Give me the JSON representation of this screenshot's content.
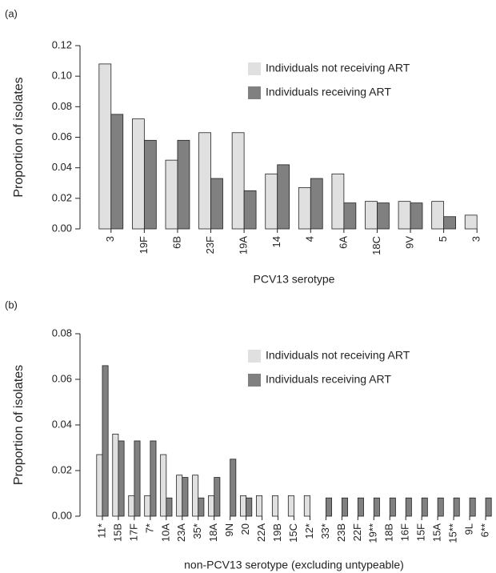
{
  "chart_data": [
    {
      "type": "bar",
      "panel": "(a)",
      "ylabel": "Proportion of isolates",
      "xlabel": "PCV13 serotype",
      "categories": [
        "3",
        "19F",
        "6B",
        "23F",
        "19A",
        "14",
        "4",
        "6A",
        "18C",
        "9V",
        "5",
        "3"
      ],
      "series": [
        {
          "name": "Individuals not receiving ART",
          "color": "#e0e0e0",
          "values": [
            0.108,
            0.072,
            0.045,
            0.063,
            0.063,
            0.036,
            0.027,
            0.036,
            0.018,
            0.018,
            0.018,
            0.009
          ]
        },
        {
          "name": "Individuals receiving ART",
          "color": "#808080",
          "values": [
            0.075,
            0.058,
            0.058,
            0.033,
            0.025,
            0.042,
            0.033,
            0.017,
            0.017,
            0.017,
            0.008,
            0
          ]
        }
      ],
      "ylim": [
        0,
        0.12
      ],
      "yticks": [
        {
          "value": 0,
          "label": "0.00"
        },
        0.02,
        0.04,
        0.06,
        0.08,
        {
          "value": 0.1,
          "label": "0.10"
        },
        0.12
      ]
    },
    {
      "type": "bar",
      "panel": "(b)",
      "ylabel": "Proportion of isolates",
      "xlabel": "non-PCV13 serotype (excluding untypeable)",
      "categories": [
        "11*",
        "15B",
        "17F",
        "7*",
        "10A",
        "23A",
        "35*",
        "18A",
        "9N",
        "20",
        "22A",
        "19B",
        "15C",
        "12*",
        "33*",
        "23B",
        "22F",
        "19**",
        "18B",
        "16F",
        "15F",
        "15A",
        "15**",
        "9L",
        "6**"
      ],
      "series": [
        {
          "name": "Individuals not receiving ART",
          "color": "#e0e0e0",
          "values": [
            0.027,
            0.036,
            0.009,
            0.009,
            0.027,
            0.018,
            0.018,
            0.009,
            0,
            0.009,
            0.009,
            0.009,
            0.009,
            0.009,
            0,
            0,
            0,
            0,
            0,
            0,
            0,
            0,
            0,
            0,
            0
          ]
        },
        {
          "name": "Individuals receiving ART",
          "color": "#808080",
          "values": [
            0.066,
            0.033,
            0.033,
            0.033,
            0.008,
            0.017,
            0.008,
            0.017,
            0.025,
            0.008,
            0,
            0,
            0,
            0,
            0.008,
            0.008,
            0.008,
            0.008,
            0.008,
            0.008,
            0.008,
            0.008,
            0.008,
            0.008,
            0.008
          ]
        }
      ],
      "ylim": [
        0,
        0.08
      ],
      "yticks": [
        {
          "value": 0,
          "label": "0.00"
        },
        0.02,
        0.04,
        0.06,
        0.08
      ]
    }
  ]
}
